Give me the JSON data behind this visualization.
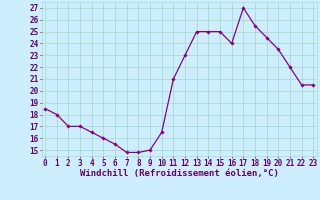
{
  "x": [
    0,
    1,
    2,
    3,
    4,
    5,
    6,
    7,
    8,
    9,
    10,
    11,
    12,
    13,
    14,
    15,
    16,
    17,
    18,
    19,
    20,
    21,
    22,
    23
  ],
  "y": [
    18.5,
    18.0,
    17.0,
    17.0,
    16.5,
    16.0,
    15.5,
    14.8,
    14.8,
    15.0,
    16.5,
    21.0,
    23.0,
    25.0,
    25.0,
    25.0,
    24.0,
    27.0,
    25.5,
    24.5,
    23.5,
    22.0,
    20.5,
    20.5
  ],
  "line_color": "#880088",
  "marker": "D",
  "markersize": 1.8,
  "linewidth": 0.9,
  "bg_color": "#cceeff",
  "grid_color": "#aaddcc",
  "xlabel": "Windchill (Refroidissement éolien,°C)",
  "xlabel_color": "#660066",
  "xlabel_fontsize": 6.5,
  "tick_color": "#660066",
  "tick_fontsize": 5.5,
  "ylim": [
    14.5,
    27.5
  ],
  "yticks": [
    15,
    16,
    17,
    18,
    19,
    20,
    21,
    22,
    23,
    24,
    25,
    26,
    27
  ],
  "xticks": [
    0,
    1,
    2,
    3,
    4,
    5,
    6,
    7,
    8,
    9,
    10,
    11,
    12,
    13,
    14,
    15,
    16,
    17,
    18,
    19,
    20,
    21,
    22,
    23
  ]
}
